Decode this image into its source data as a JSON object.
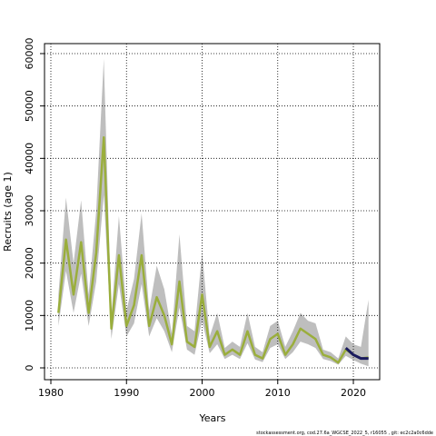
{
  "chart_data": {
    "type": "line",
    "xlabel": "Years",
    "ylabel": "Recruits (age 1)",
    "caption": "stockassessment.org, cod.27.6a_WGCSE_2022_5, r16055 , git: ec2c2a0c6dde",
    "x": [
      1981,
      1982,
      1983,
      1984,
      1985,
      1986,
      1987,
      1988,
      1989,
      1990,
      1991,
      1992,
      1993,
      1994,
      1995,
      1996,
      1997,
      1998,
      1999,
      2000,
      2001,
      2002,
      2003,
      2004,
      2005,
      2006,
      2007,
      2008,
      2009,
      2010,
      2011,
      2012,
      2013,
      2014,
      2015,
      2016,
      2017,
      2018,
      2019,
      2020,
      2021,
      2022
    ],
    "band_color": "#bebebe",
    "upper": [
      14000,
      32500,
      20000,
      32000,
      14000,
      30000,
      59000,
      10000,
      29000,
      11000,
      17000,
      29500,
      11000,
      19500,
      15000,
      6500,
      25500,
      8000,
      7000,
      22000,
      6000,
      10500,
      3800,
      5000,
      4000,
      10500,
      4000,
      3000,
      8000,
      9000,
      4000,
      7000,
      10500,
      9000,
      8500,
      3500,
      3000,
      1800,
      6000,
      4500,
      4000,
      13000
    ],
    "lower": [
      8000,
      18500,
      10500,
      18000,
      8000,
      16500,
      33000,
      5500,
      16000,
      6000,
      8500,
      16000,
      6000,
      9500,
      7000,
      3000,
      11500,
      3500,
      2500,
      9000,
      2800,
      4500,
      1700,
      2500,
      1700,
      4700,
      1600,
      1100,
      3800,
      4500,
      1700,
      3000,
      5000,
      4500,
      3800,
      1700,
      1300,
      600,
      2300,
      1500,
      800,
      300
    ],
    "series": [
      {
        "color": "#9aae3c",
        "values": [
          10500,
          24500,
          14000,
          24000,
          10500,
          22000,
          44000,
          7500,
          21500,
          8000,
          12000,
          21500,
          8000,
          13500,
          10000,
          4500,
          16500,
          5000,
          4000,
          14000,
          4000,
          7000,
          2500,
          3500,
          2500,
          7000,
          2500,
          1800,
          5500,
          6500,
          2500,
          4500,
          7500,
          6500,
          5500,
          2500,
          2000,
          1000,
          3500,
          2500,
          1800,
          2000
        ]
      },
      {
        "color": "#1a1a5e",
        "values": [
          null,
          null,
          null,
          null,
          null,
          null,
          null,
          null,
          null,
          null,
          null,
          null,
          null,
          null,
          null,
          null,
          null,
          null,
          null,
          null,
          null,
          null,
          null,
          null,
          null,
          null,
          null,
          null,
          null,
          null,
          null,
          null,
          null,
          null,
          null,
          null,
          null,
          null,
          3800,
          2500,
          1800,
          1800
        ]
      }
    ],
    "xlim": [
      1979.16,
      2023.48
    ],
    "ylim": [
      -2254,
      61907
    ],
    "xticks": [
      1980,
      1990,
      2000,
      2010,
      2020
    ],
    "yticks": [
      0,
      10000,
      20000,
      30000,
      40000,
      50000,
      60000
    ],
    "grid": true
  }
}
